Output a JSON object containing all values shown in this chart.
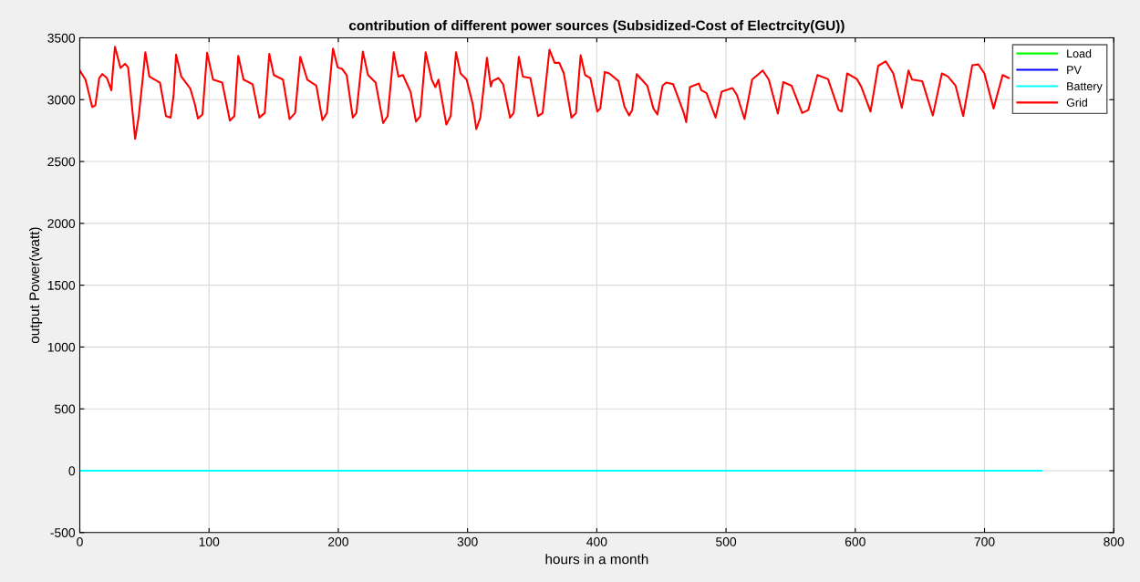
{
  "chart_data": {
    "type": "line",
    "title": "contribution of different power sources (Subsidized-Cost of Electrcity(GU))",
    "xlabel": "hours in a month",
    "ylabel": "output Power(watt)",
    "xlim": [
      0,
      800
    ],
    "xticks": [
      0,
      100,
      200,
      300,
      400,
      500,
      600,
      700,
      800
    ],
    "ylim": [
      -500,
      3500
    ],
    "yticks": [
      -500,
      0,
      500,
      1000,
      1500,
      2000,
      2500,
      3000,
      3500
    ],
    "grid": true,
    "legend": "top right",
    "line_style": "solid",
    "marker": "none",
    "series": [
      {
        "name": "Load",
        "color": "#00ff00"
      },
      {
        "name": "PV",
        "color": "#0000ff"
      },
      {
        "name": "Battery",
        "color": "#00ffff",
        "x": [
          0,
          744
        ],
        "values": [
          0,
          0
        ]
      },
      {
        "name": "Grid",
        "color": "#ff0000",
        "x": [
          0,
          4.4,
          9.6,
          12,
          15,
          17.4,
          21,
          24.4,
          25.2,
          27.2,
          31.5,
          35,
          37.4,
          40.9,
          42.8,
          45.6,
          48.6,
          50.7,
          53.8,
          62,
          66.7,
          70.3,
          72.6,
          74.5,
          78.5,
          85.5,
          89,
          91.4,
          94.9,
          98.5,
          103.1,
          110.2,
          116.1,
          119.6,
          122.6,
          126.7,
          133.7,
          138.9,
          143.1,
          146.6,
          150.1,
          157.2,
          162.3,
          166.6,
          170.6,
          176,
          183,
          187.7,
          191.2,
          195.9,
          199.5,
          202.9,
          206.5,
          211.2,
          214,
          219,
          223,
          228.9,
          234.7,
          238.2,
          242.9,
          246.5,
          250,
          255.9,
          260.1,
          263.4,
          267.6,
          272.3,
          275.1,
          277.5,
          283.6,
          286.9,
          291.1,
          294.6,
          299.3,
          304,
          306.8,
          309.9,
          315,
          318,
          319.3,
          324,
          327.5,
          332.9,
          335.7,
          339.7,
          342.8,
          348.6,
          354.5,
          358.1,
          363.4,
          367.4,
          371,
          374.5,
          380.4,
          383.9,
          387.5,
          391,
          395,
          400.4,
          402.7,
          406.2,
          409.7,
          416.8,
          421.5,
          425,
          427.4,
          430.9,
          439.1,
          443.8,
          446.9,
          450.9,
          453.7,
          459.1,
          462.6,
          467.3,
          469.2,
          472,
          479,
          480.9,
          484.9,
          491.9,
          496.6,
          504.9,
          508.4,
          514.3,
          520.2,
          528.4,
          533.1,
          540.1,
          544.3,
          550.7,
          558.9,
          563.6,
          570.7,
          578.9,
          587.1,
          589.5,
          593.7,
          601.2,
          604.8,
          611.8,
          617.7,
          623.6,
          629.4,
          636,
          641.2,
          644,
          651.8,
          660,
          667,
          671.7,
          677.6,
          683.5,
          690.5,
          695.2,
          699.9,
          707,
          714,
          718.7
        ],
        "values": [
          3236,
          3162,
          2941,
          2953,
          3175,
          3207,
          3175,
          3076,
          3187,
          3428,
          3256,
          3290,
          3261,
          2892,
          2683,
          2867,
          3162,
          3384,
          3187,
          3138,
          2867,
          2855,
          3039,
          3364,
          3187,
          3089,
          2965,
          2848,
          2880,
          3379,
          3162,
          3138,
          2830,
          2867,
          3354,
          3162,
          3125,
          2855,
          2892,
          3371,
          3199,
          3162,
          2843,
          2892,
          3347,
          3162,
          3113,
          2835,
          2892,
          3413,
          3261,
          3249,
          3199,
          2855,
          2892,
          3389,
          3199,
          3138,
          2811,
          2867,
          3384,
          3187,
          3199,
          3064,
          2823,
          2867,
          3384,
          3162,
          3101,
          3162,
          2799,
          2867,
          3384,
          3212,
          3162,
          2965,
          2762,
          2855,
          3339,
          3108,
          3150,
          3175,
          3125,
          2855,
          2892,
          3347,
          3187,
          3175,
          2867,
          2892,
          3404,
          3298,
          3298,
          3212,
          2855,
          2892,
          3359,
          3199,
          3175,
          2904,
          2929,
          3224,
          3212,
          3150,
          2941,
          2872,
          2916,
          3207,
          3113,
          2929,
          2880,
          3113,
          3138,
          3125,
          3027,
          2892,
          2818,
          3101,
          3131,
          3076,
          3052,
          2855,
          3064,
          3094,
          3039,
          2843,
          3162,
          3236,
          3162,
          2887,
          3142,
          3113,
          2892,
          2916,
          3199,
          3167,
          2916,
          2904,
          3212,
          3167,
          3101,
          2904,
          3273,
          3310,
          3212,
          2934,
          3236,
          3162,
          3150,
          2872,
          3212,
          3187,
          3113,
          2867,
          3278,
          3285,
          3212,
          2929,
          3199,
          3175
        ]
      }
    ]
  }
}
